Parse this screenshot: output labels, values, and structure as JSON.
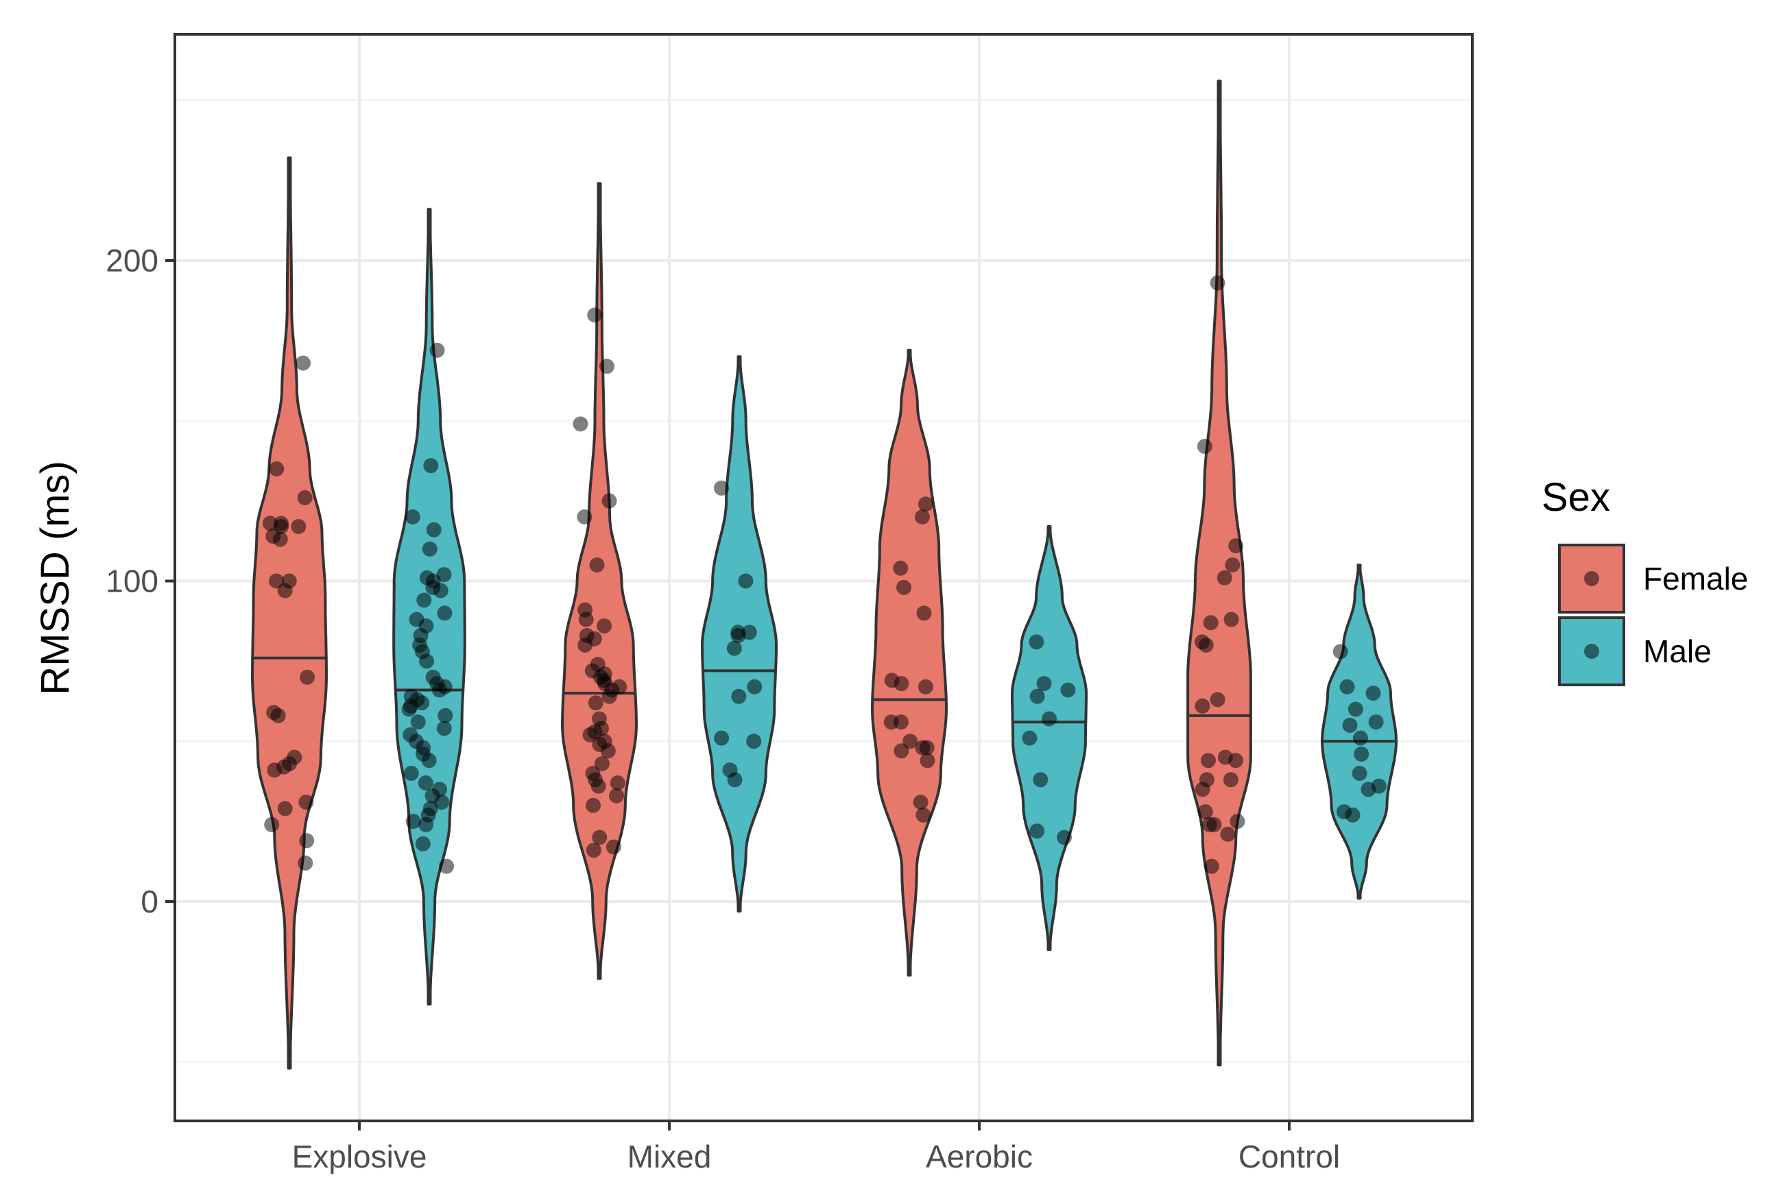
{
  "chart_data": {
    "type": "violin",
    "title": "",
    "xlabel": "",
    "ylabel": "RMSSD (ms)",
    "ylim": [
      -68,
      270
    ],
    "yticks": [
      0,
      100,
      200
    ],
    "categories": [
      "Explosive",
      "Mixed",
      "Aerobic",
      "Control"
    ],
    "grid": true,
    "legend": {
      "title": "Sex",
      "position": "right",
      "entries": [
        {
          "name": "Female",
          "color": "#e7796c"
        },
        {
          "name": "Male",
          "color": "#4fbac2"
        }
      ]
    },
    "series": [
      {
        "name": "Female",
        "color": "#e7796c",
        "groups": [
          {
            "category": "Explosive",
            "range": [
              -52,
              232
            ],
            "median": 76,
            "profile": [
              [
                -52,
                0.02
              ],
              [
                -10,
                0.12
              ],
              [
                20,
                0.4
              ],
              [
                45,
                0.85
              ],
              [
                70,
                1.0
              ],
              [
                95,
                0.97
              ],
              [
                115,
                0.88
              ],
              [
                135,
                0.55
              ],
              [
                160,
                0.2
              ],
              [
                185,
                0.06
              ],
              [
                232,
                0.02
              ]
            ],
            "points": [
              12,
              19,
              24,
              29,
              31,
              41,
              42,
              43,
              45,
              58,
              59,
              70,
              97,
              100,
              100,
              113,
              114,
              117,
              117,
              118,
              118,
              126,
              135,
              168
            ]
          },
          {
            "category": "Mixed",
            "range": [
              -24,
              224
            ],
            "median": 65,
            "profile": [
              [
                -24,
                0.02
              ],
              [
                0,
                0.18
              ],
              [
                30,
                0.7
              ],
              [
                55,
                1.0
              ],
              [
                80,
                0.92
              ],
              [
                100,
                0.6
              ],
              [
                120,
                0.28
              ],
              [
                150,
                0.12
              ],
              [
                180,
                0.07
              ],
              [
                224,
                0.02
              ]
            ],
            "points": [
              16,
              17,
              20,
              30,
              33,
              36,
              37,
              38,
              40,
              43,
              47,
              49,
              50,
              52,
              53,
              54,
              57,
              62,
              64,
              66,
              67,
              68,
              69,
              70,
              71,
              72,
              74,
              80,
              82,
              83,
              86,
              88,
              91,
              105,
              120,
              125,
              149,
              167,
              183
            ]
          },
          {
            "category": "Aerobic",
            "range": [
              -23,
              172
            ],
            "median": 63,
            "profile": [
              [
                -23,
                0.02
              ],
              [
                10,
                0.2
              ],
              [
                40,
                0.85
              ],
              [
                60,
                1.0
              ],
              [
                85,
                0.9
              ],
              [
                110,
                0.8
              ],
              [
                135,
                0.55
              ],
              [
                155,
                0.22
              ],
              [
                172,
                0.02
              ]
            ],
            "points": [
              27,
              31,
              44,
              47,
              48,
              48,
              50,
              56,
              56,
              67,
              68,
              69,
              90,
              98,
              104,
              120,
              124
            ]
          },
          {
            "category": "Control",
            "range": [
              -51,
              256
            ],
            "median": 58,
            "profile": [
              [
                -51,
                0.02
              ],
              [
                -10,
                0.1
              ],
              [
                20,
                0.45
              ],
              [
                45,
                0.85
              ],
              [
                70,
                0.85
              ],
              [
                100,
                0.65
              ],
              [
                130,
                0.4
              ],
              [
                160,
                0.2
              ],
              [
                200,
                0.06
              ],
              [
                256,
                0.02
              ]
            ],
            "points": [
              11,
              21,
              24,
              24,
              25,
              28,
              35,
              38,
              38,
              44,
              44,
              45,
              61,
              63,
              80,
              81,
              87,
              88,
              101,
              105,
              111,
              142,
              193
            ]
          }
        ]
      },
      {
        "name": "Male",
        "color": "#4fbac2",
        "groups": [
          {
            "category": "Explosive",
            "range": [
              -32,
              216
            ],
            "median": 66,
            "profile": [
              [
                -32,
                0.02
              ],
              [
                0,
                0.15
              ],
              [
                25,
                0.55
              ],
              [
                55,
                0.88
              ],
              [
                80,
                0.96
              ],
              [
                100,
                0.95
              ],
              [
                125,
                0.6
              ],
              [
                150,
                0.3
              ],
              [
                180,
                0.08
              ],
              [
                216,
                0.02
              ]
            ],
            "points": [
              11,
              18,
              24,
              25,
              27,
              29,
              31,
              33,
              35,
              37,
              40,
              44,
              46,
              48,
              50,
              52,
              54,
              56,
              58,
              60,
              61,
              62,
              63,
              64,
              66,
              67,
              68,
              70,
              75,
              78,
              80,
              83,
              86,
              88,
              90,
              94,
              97,
              98,
              100,
              101,
              102,
              110,
              116,
              120,
              136,
              172
            ]
          },
          {
            "category": "Mixed",
            "range": [
              -3,
              170
            ],
            "median": 72,
            "profile": [
              [
                -3,
                0.02
              ],
              [
                15,
                0.18
              ],
              [
                40,
                0.72
              ],
              [
                60,
                0.95
              ],
              [
                80,
                1.0
              ],
              [
                100,
                0.72
              ],
              [
                125,
                0.35
              ],
              [
                150,
                0.18
              ],
              [
                170,
                0.02
              ]
            ],
            "points": [
              38,
              41,
              50,
              51,
              64,
              67,
              79,
              83,
              84,
              84,
              100,
              129
            ]
          },
          {
            "category": "Aerobic",
            "range": [
              -15,
              117
            ],
            "median": 56,
            "profile": [
              [
                -15,
                0.02
              ],
              [
                5,
                0.2
              ],
              [
                30,
                0.7
              ],
              [
                50,
                0.98
              ],
              [
                65,
                1.0
              ],
              [
                80,
                0.75
              ],
              [
                95,
                0.35
              ],
              [
                117,
                0.02
              ]
            ],
            "points": [
              20,
              22,
              38,
              51,
              57,
              64,
              66,
              68,
              81
            ]
          },
          {
            "category": "Control",
            "range": [
              1,
              105
            ],
            "median": 50,
            "profile": [
              [
                1,
                0.02
              ],
              [
                12,
                0.2
              ],
              [
                30,
                0.75
              ],
              [
                50,
                1.0
              ],
              [
                65,
                0.85
              ],
              [
                80,
                0.42
              ],
              [
                95,
                0.12
              ],
              [
                105,
                0.02
              ]
            ],
            "points": [
              27,
              28,
              35,
              36,
              40,
              46,
              51,
              55,
              56,
              60,
              65,
              67,
              78
            ]
          }
        ]
      }
    ]
  }
}
